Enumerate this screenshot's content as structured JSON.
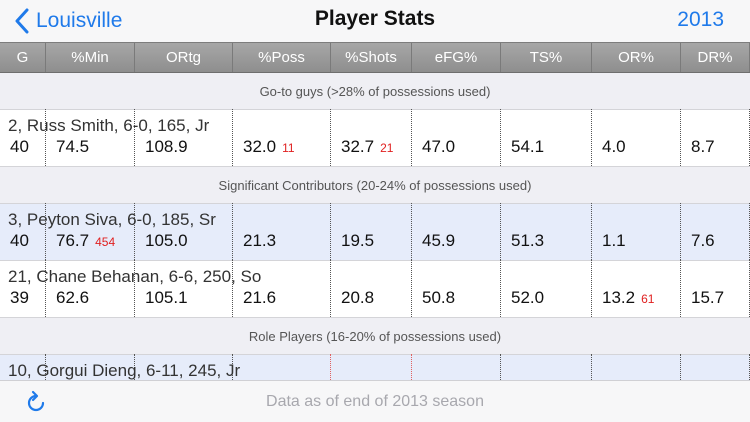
{
  "nav": {
    "back_label": "Louisville",
    "title": "Player Stats",
    "year": "2013"
  },
  "columns": [
    "G",
    "%Min",
    "ORtg",
    "%Poss",
    "%Shots",
    "eFG%",
    "TS%",
    "OR%",
    "DR%"
  ],
  "sections": [
    {
      "title": "Go-to guys (>28% of possessions used)",
      "players": [
        {
          "name": "2, Russ Smith, 6-0, 165, Jr",
          "highlighted": false,
          "stats": [
            {
              "v": "40",
              "r": ""
            },
            {
              "v": "74.5",
              "r": ""
            },
            {
              "v": "108.9",
              "r": ""
            },
            {
              "v": "32.0",
              "r": "11"
            },
            {
              "v": "32.7",
              "r": "21"
            },
            {
              "v": "47.0",
              "r": ""
            },
            {
              "v": "54.1",
              "r": ""
            },
            {
              "v": "4.0",
              "r": ""
            },
            {
              "v": "8.7",
              "r": ""
            }
          ]
        }
      ]
    },
    {
      "title": "Significant Contributors (20-24% of possessions used)",
      "players": [
        {
          "name": "3, Peyton Siva, 6-0, 185, Sr",
          "highlighted": true,
          "stats": [
            {
              "v": "40",
              "r": ""
            },
            {
              "v": "76.7",
              "r": "454"
            },
            {
              "v": "105.0",
              "r": ""
            },
            {
              "v": "21.3",
              "r": ""
            },
            {
              "v": "19.5",
              "r": ""
            },
            {
              "v": "45.9",
              "r": ""
            },
            {
              "v": "51.3",
              "r": ""
            },
            {
              "v": "1.1",
              "r": ""
            },
            {
              "v": "7.6",
              "r": ""
            }
          ]
        },
        {
          "name": "21, Chane Behanan, 6-6, 250, So",
          "highlighted": false,
          "stats": [
            {
              "v": "39",
              "r": ""
            },
            {
              "v": "62.6",
              "r": ""
            },
            {
              "v": "105.1",
              "r": ""
            },
            {
              "v": "21.6",
              "r": ""
            },
            {
              "v": "20.8",
              "r": ""
            },
            {
              "v": "50.8",
              "r": ""
            },
            {
              "v": "52.0",
              "r": ""
            },
            {
              "v": "13.2",
              "r": "61"
            },
            {
              "v": "15.7",
              "r": ""
            }
          ]
        }
      ]
    },
    {
      "title": "Role Players (16-20% of possessions used)",
      "players": [
        {
          "name": "10, Gorgui Dieng, 6-11, 245, Jr",
          "highlighted": true,
          "partial": true,
          "stats": []
        }
      ]
    }
  ],
  "footer": {
    "text": "Data as of end of 2013 season",
    "refresh_icon": "refresh-icon"
  },
  "colors": {
    "accent": "#1f7aea",
    "rank": "#e02020",
    "highlight_row": "#e6ecfa",
    "header_gray": "#9a9a9a"
  }
}
